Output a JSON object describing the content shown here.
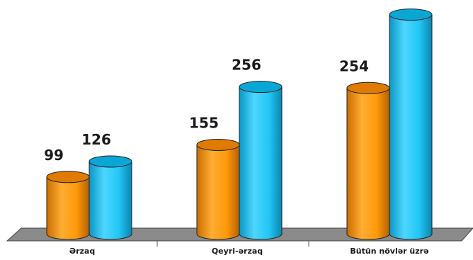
{
  "chart_data": {
    "type": "bar",
    "style": "3d-cylinder",
    "categories": [
      "Ərzaq",
      "Qeyri-ərzaq",
      "Bütün növlər üzrə"
    ],
    "series": [
      {
        "values": [
          99,
          155,
          254
        ],
        "color": "#FF9900"
      },
      {
        "values": [
          126,
          256,
          382
        ],
        "color": "#19C3F2"
      }
    ],
    "title": "",
    "xlabel": "",
    "ylabel": "",
    "ylim": [
      0,
      400
    ],
    "grid": false,
    "legend": "none",
    "data_labels": true
  }
}
